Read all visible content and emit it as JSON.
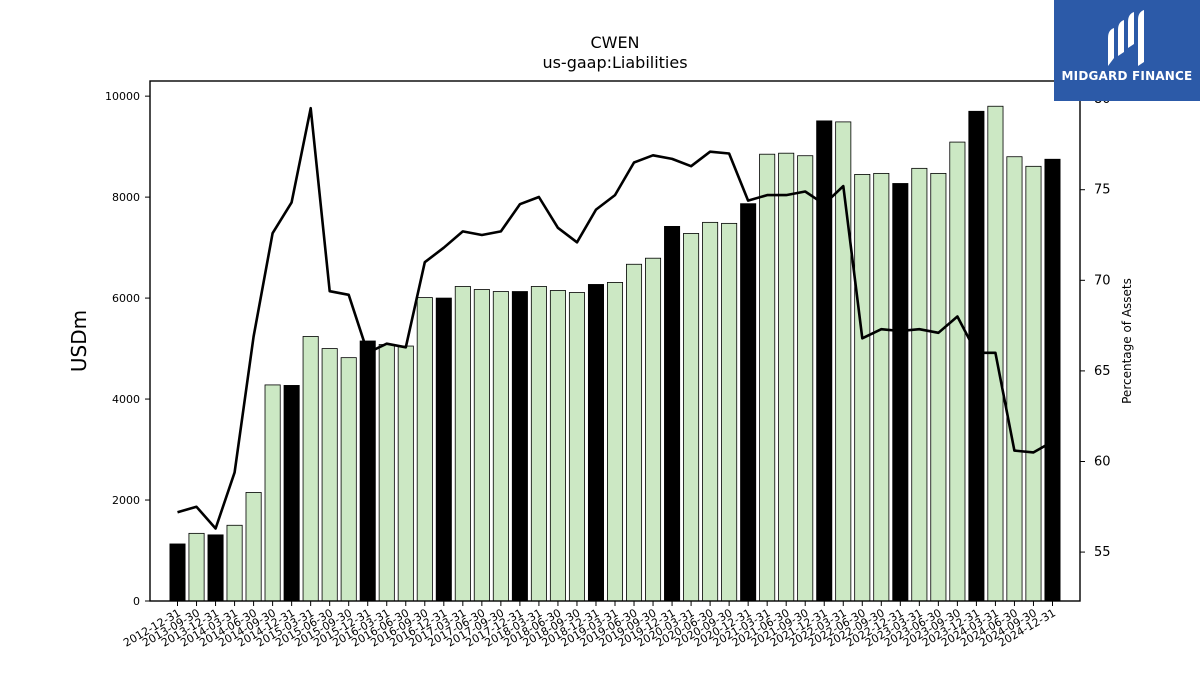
{
  "chart_data": {
    "type": "bar",
    "title": "CWEN",
    "subtitle": "us-gaap:Liabilities",
    "ylabel": "USDm",
    "ylabel_right": "Percentage of Assets",
    "ylim": [
      0,
      10300
    ],
    "ylim_right": [
      52.3,
      81
    ],
    "yticks": [
      0,
      2000,
      4000,
      6000,
      8000,
      10000
    ],
    "yticks_right": [
      55,
      60,
      65,
      70,
      75,
      80
    ],
    "grid": false,
    "colors": {
      "bar_annual": "#000000",
      "bar_quarter": "#cce8c4",
      "bar_edge": "#000000",
      "line": "#000000"
    },
    "categories": [
      "2012-12-31",
      "2013-09-30",
      "2013-12-31",
      "2014-03-31",
      "2014-06-30",
      "2014-09-30",
      "2014-12-31",
      "2015-03-31",
      "2015-06-30",
      "2015-09-30",
      "2015-12-31",
      "2016-03-31",
      "2016-06-30",
      "2016-09-30",
      "2016-12-31",
      "2017-03-31",
      "2017-06-30",
      "2017-09-30",
      "2017-12-31",
      "2018-03-31",
      "2018-06-30",
      "2018-09-30",
      "2018-12-31",
      "2019-03-31",
      "2019-06-30",
      "2019-09-30",
      "2019-12-31",
      "2020-03-31",
      "2020-06-30",
      "2020-09-30",
      "2020-12-31",
      "2021-03-31",
      "2021-06-30",
      "2021-09-30",
      "2021-12-31",
      "2022-03-31",
      "2022-06-30",
      "2022-09-30",
      "2022-12-31",
      "2023-03-31",
      "2023-06-30",
      "2023-09-30",
      "2023-12-31",
      "2024-03-31",
      "2024-06-30",
      "2024-09-30",
      "2024-12-31"
    ],
    "series": [
      {
        "kind": "bar",
        "values": [
          1130,
          1340,
          1310,
          1500,
          2150,
          4280,
          4270,
          5240,
          5000,
          4820,
          5150,
          5080,
          5050,
          6010,
          6000,
          6230,
          6170,
          6130,
          6130,
          6230,
          6150,
          6110,
          6270,
          6310,
          6670,
          6790,
          7420,
          7280,
          7500,
          7480,
          7870,
          8850,
          8870,
          8820,
          9510,
          9490,
          8450,
          8470,
          8270,
          8570,
          8470,
          9090,
          9700,
          9800,
          8800,
          8610,
          8750
        ],
        "annual": [
          true,
          false,
          true,
          false,
          false,
          false,
          true,
          false,
          false,
          false,
          true,
          false,
          false,
          false,
          true,
          false,
          false,
          false,
          true,
          false,
          false,
          false,
          true,
          false,
          false,
          false,
          true,
          false,
          false,
          false,
          true,
          false,
          false,
          false,
          true,
          false,
          false,
          false,
          true,
          false,
          false,
          false,
          true,
          false,
          false,
          false,
          true
        ]
      },
      {
        "kind": "line",
        "axis": "right",
        "values": [
          57.2,
          57.5,
          56.3,
          59.4,
          66.9,
          72.6,
          74.3,
          79.5,
          69.4,
          69.2,
          66.0,
          66.5,
          66.3,
          71.0,
          71.8,
          72.7,
          72.5,
          72.7,
          74.2,
          74.6,
          72.9,
          72.1,
          73.9,
          74.7,
          76.5,
          76.9,
          76.7,
          76.3,
          77.1,
          77.0,
          74.4,
          74.7,
          74.7,
          74.9,
          74.2,
          75.2,
          66.8,
          67.3,
          67.2,
          67.3,
          67.1,
          68.0,
          66.0,
          66.0,
          60.6,
          60.5,
          61.1
        ]
      }
    ]
  },
  "logo": {
    "text": "MIDGARD FINANCE",
    "icon": "midgard-logo-icon"
  }
}
